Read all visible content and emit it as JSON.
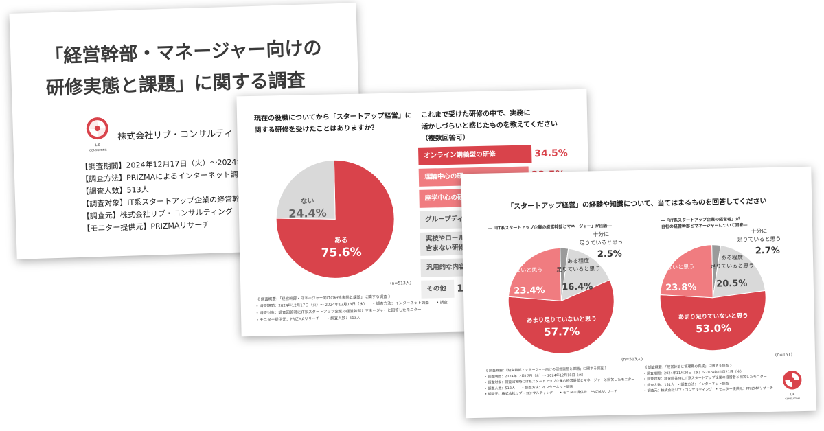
{
  "colors": {
    "accent": "#d9434b",
    "accent_light": "#f07c80",
    "gray": "#d9d9d9",
    "dark_gray": "#9a9a9a"
  },
  "slide1": {
    "title_line1": "「経営幹部・マネージャー向けの",
    "title_line2": "研修実態と課題」に関する調査",
    "logo_text_line1": "LiB",
    "logo_text_line2": "CONSULTING",
    "company": "株式会社リブ・コンサルティ",
    "info": [
      "【調査期間】2024年12月17日（火）～2024年",
      "【調査方法】PRIZMAによるインターネット調",
      "【調査人数】513人",
      "【調査対象】IT系スタートアップ企業の経営幹",
      "【調査元】株式会社リブ・コンサルティング",
      "【モニター提供元】PRIZMAリサーチ"
    ]
  },
  "slide2": {
    "question_left_line1": "現在の役職についてから「スタートアップ経営」に",
    "question_left_line2": "関する研修を受けたことはありますか？",
    "question_right_line1": "これまで受けた研修の中で、実務に",
    "question_right_line2": "活かしづらいと感じたものを教えてください",
    "question_right_line3": "（複数回答可）",
    "pie": [
      {
        "label": "ある",
        "value": 75.6,
        "pct": "75.6%"
      },
      {
        "label": "ない",
        "value": 24.4,
        "pct": "24.4%"
      }
    ],
    "n": "(n=513人)",
    "bars": [
      {
        "label": "オンライン講義型の研修",
        "value": 34.5,
        "pct": "34.5%"
      },
      {
        "label": "理論中心の研",
        "value": 33.5,
        "pct": "33.5%"
      },
      {
        "label": "座学中心の研",
        "value": 30.0,
        "pct": ""
      },
      {
        "label": "グループディ",
        "value": 24.0,
        "pct": ""
      },
      {
        "label": "実技やロール",
        "label2": "含まない研修",
        "value": 22.0,
        "pct": ""
      },
      {
        "label": "汎用的な内容",
        "value": 18.0,
        "pct": ""
      },
      {
        "label": "その他",
        "value": 1.6,
        "pct": "1.6"
      }
    ],
    "notes": [
      "《 調査概要：「経営幹部・マネージャー向けの研修実態と課題」に関する調査 》",
      "• 調査期間：2024年12月17日（火）～ 2024年12月18日（水）　　• 調査方法：インターネット調査　　• 調査",
      "• 調査対象：調査回答時にIT系スタートアップ企業の経営幹部とマネージャーと回答したモニター",
      "• モニター提供元：PRIZMAリサーチ　　• 調査人数：513人"
    ]
  },
  "slide3": {
    "title": "「スタートアップ経営」の経験や知識について、当てはまるものを回答してください",
    "left_sub": "―「IT系スタートアップ企業の経営幹部とマネージャー」が回答―",
    "right_sub_line1": "―「IT系スタートアップ企業の経営者」が",
    "right_sub_line2": "自社の経営幹部とマネージャーについて回答―",
    "left_pie": [
      {
        "label": "十分に足りていると思う",
        "value": 2.5,
        "pct": "2.5%"
      },
      {
        "label": "ある程度足りていると思う",
        "value": 16.4,
        "pct": "16.4%"
      },
      {
        "label": "あまり足りていないと思う",
        "value": 57.7,
        "pct": "57.7%"
      },
      {
        "label": "全く足りていないと思う",
        "value": 23.4,
        "pct": "23.4%"
      }
    ],
    "right_pie": [
      {
        "label": "十分に足りていると思う",
        "value": 2.7,
        "pct": "2.7%"
      },
      {
        "label": "ある程度足りていると思う",
        "value": 20.5,
        "pct": "20.5%"
      },
      {
        "label": "あまり足りていないと思う",
        "value": 53.0,
        "pct": "53.0%"
      },
      {
        "label": "全く足りていないと思う",
        "value": 23.8,
        "pct": "23.8%"
      }
    ],
    "label_sufficient_l1": "十分に",
    "label_sufficient_l2": "足りていると思う",
    "label_some_l1": "ある程度",
    "label_some_l2": "足りていると思う",
    "label_none_l1": "全く",
    "label_none_l2": "足りていないと思う",
    "label_notmuch": "あまり足りていないと思う",
    "left_n": "(n=513人)",
    "right_n": "(n=151)",
    "left_notes": [
      "《 調査概要：「経営幹部・マネージャー向けの研修実態と課題」に関する調査 》",
      "• 調査期間：2024年12月17日（火）～ 2024年12月18日（水）",
      "• 調査対象：調査回答時にIT系スタートアップ企業の経営幹部とマネージャーと回答したモニター",
      "• 調査人数：513人　　• 調査方法：インターネット調査",
      "• 調査元：株式会社リブ・コンサルティング　　• モニター提供元：PRIZMAリサーチ"
    ],
    "right_notes": [
      "《 調査概要：「経営幹部と管理職の育成」に関する調査 》",
      "• 調査期間：2024年11月20日（水）～2024年11月21日（木）",
      "• 調査対象：調査回答時にIT系スタートアップ企業の経営者と回答したモニター",
      "• 調査人数：151人　• 調査方法：インターネット調査",
      "• 調査元：株式会社リブ・コンサルティング　• モニター提供元：PRIZMAリサーチ"
    ]
  }
}
